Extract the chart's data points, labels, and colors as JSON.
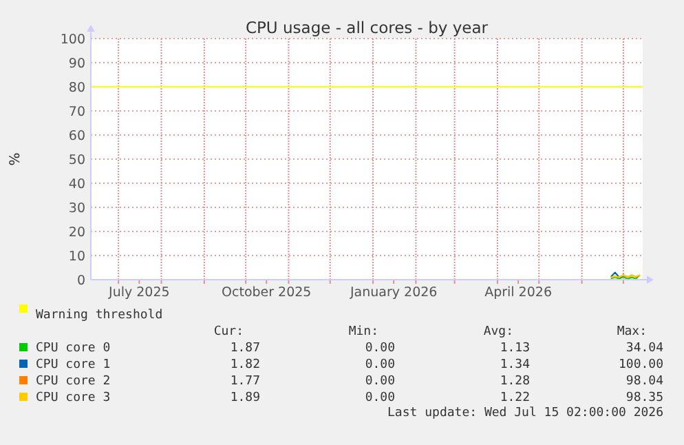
{
  "chart_data": {
    "type": "line",
    "title": "CPU usage - all cores - by year",
    "ylabel": "%",
    "xlim": [
      "2025-06-11",
      "2026-07-15"
    ],
    "xticks": [
      {
        "value": "2025-07-01",
        "label": null
      },
      {
        "value": "2025-07-16",
        "label": "July 2025"
      },
      {
        "value": "2025-08-01",
        "label": null
      },
      {
        "value": "2025-09-01",
        "label": null
      },
      {
        "value": "2025-10-01",
        "label": null
      },
      {
        "value": "2025-10-16",
        "label": "October 2025"
      },
      {
        "value": "2025-11-01",
        "label": null
      },
      {
        "value": "2025-12-01",
        "label": null
      },
      {
        "value": "2026-01-01",
        "label": null
      },
      {
        "value": "2026-01-16",
        "label": "January 2026"
      },
      {
        "value": "2026-02-01",
        "label": null
      },
      {
        "value": "2026-03-01",
        "label": null
      },
      {
        "value": "2026-04-01",
        "label": null
      },
      {
        "value": "2026-04-16",
        "label": "April 2026"
      },
      {
        "value": "2026-05-01",
        "label": null
      },
      {
        "value": "2026-06-01",
        "label": null
      },
      {
        "value": "2026-07-01",
        "label": null
      }
    ],
    "ylim": [
      0,
      100
    ],
    "yticks": [
      0,
      10,
      20,
      30,
      40,
      50,
      60,
      70,
      80,
      90,
      100
    ],
    "grid": true,
    "legend": "bottom",
    "marker": "none",
    "line_style": "solid",
    "ref_lines": [
      {
        "axis": "y",
        "value": 80,
        "label": "Warning threshold",
        "color": "#ffff00"
      }
    ],
    "series": [
      {
        "name": "CPU core 0",
        "color": "#00cc00",
        "x": [
          "2026-06-22",
          "2026-06-25",
          "2026-06-28",
          "2026-07-01",
          "2026-07-04",
          "2026-07-07",
          "2026-07-10",
          "2026-07-13"
        ],
        "values": [
          0.5,
          1,
          0.4,
          1.2,
          0.3,
          1,
          0.4,
          1.9
        ]
      },
      {
        "name": "CPU core 1",
        "color": "#0066b3",
        "x": [
          "2026-06-22",
          "2026-06-25",
          "2026-06-28",
          "2026-07-01",
          "2026-07-04"
        ],
        "values": [
          1.2,
          3,
          1,
          1.6,
          1.2
        ]
      },
      {
        "name": "CPU core 2",
        "color": "#ff8000",
        "x": [
          "2026-06-22",
          "2026-06-25",
          "2026-06-28",
          "2026-07-01",
          "2026-07-04",
          "2026-07-07",
          "2026-07-10",
          "2026-07-13"
        ],
        "values": [
          1.1,
          1.4,
          1,
          2,
          1,
          1.9,
          1.2,
          1.8
        ]
      },
      {
        "name": "CPU core 3",
        "color": "#ffcc00",
        "x": [
          "2026-06-22",
          "2026-06-25",
          "2026-06-28",
          "2026-07-01",
          "2026-07-04",
          "2026-07-07",
          "2026-07-10",
          "2026-07-13"
        ],
        "values": [
          1,
          1.3,
          1.1,
          1.8,
          1.1,
          1.7,
          1.3,
          1.9
        ]
      }
    ],
    "annotations": [
      "Cur:",
      "Min:",
      "Avg:",
      "Max:",
      "1.87",
      "0.00",
      "1.13",
      "34.04",
      "1.82",
      "0.00",
      "1.34",
      "100.00",
      "1.77",
      "0.00",
      "1.28",
      "98.04",
      "1.89",
      "0.00",
      "1.22",
      "98.35",
      "Last update: Wed Jul 15 02:00:00 2026"
    ]
  }
}
